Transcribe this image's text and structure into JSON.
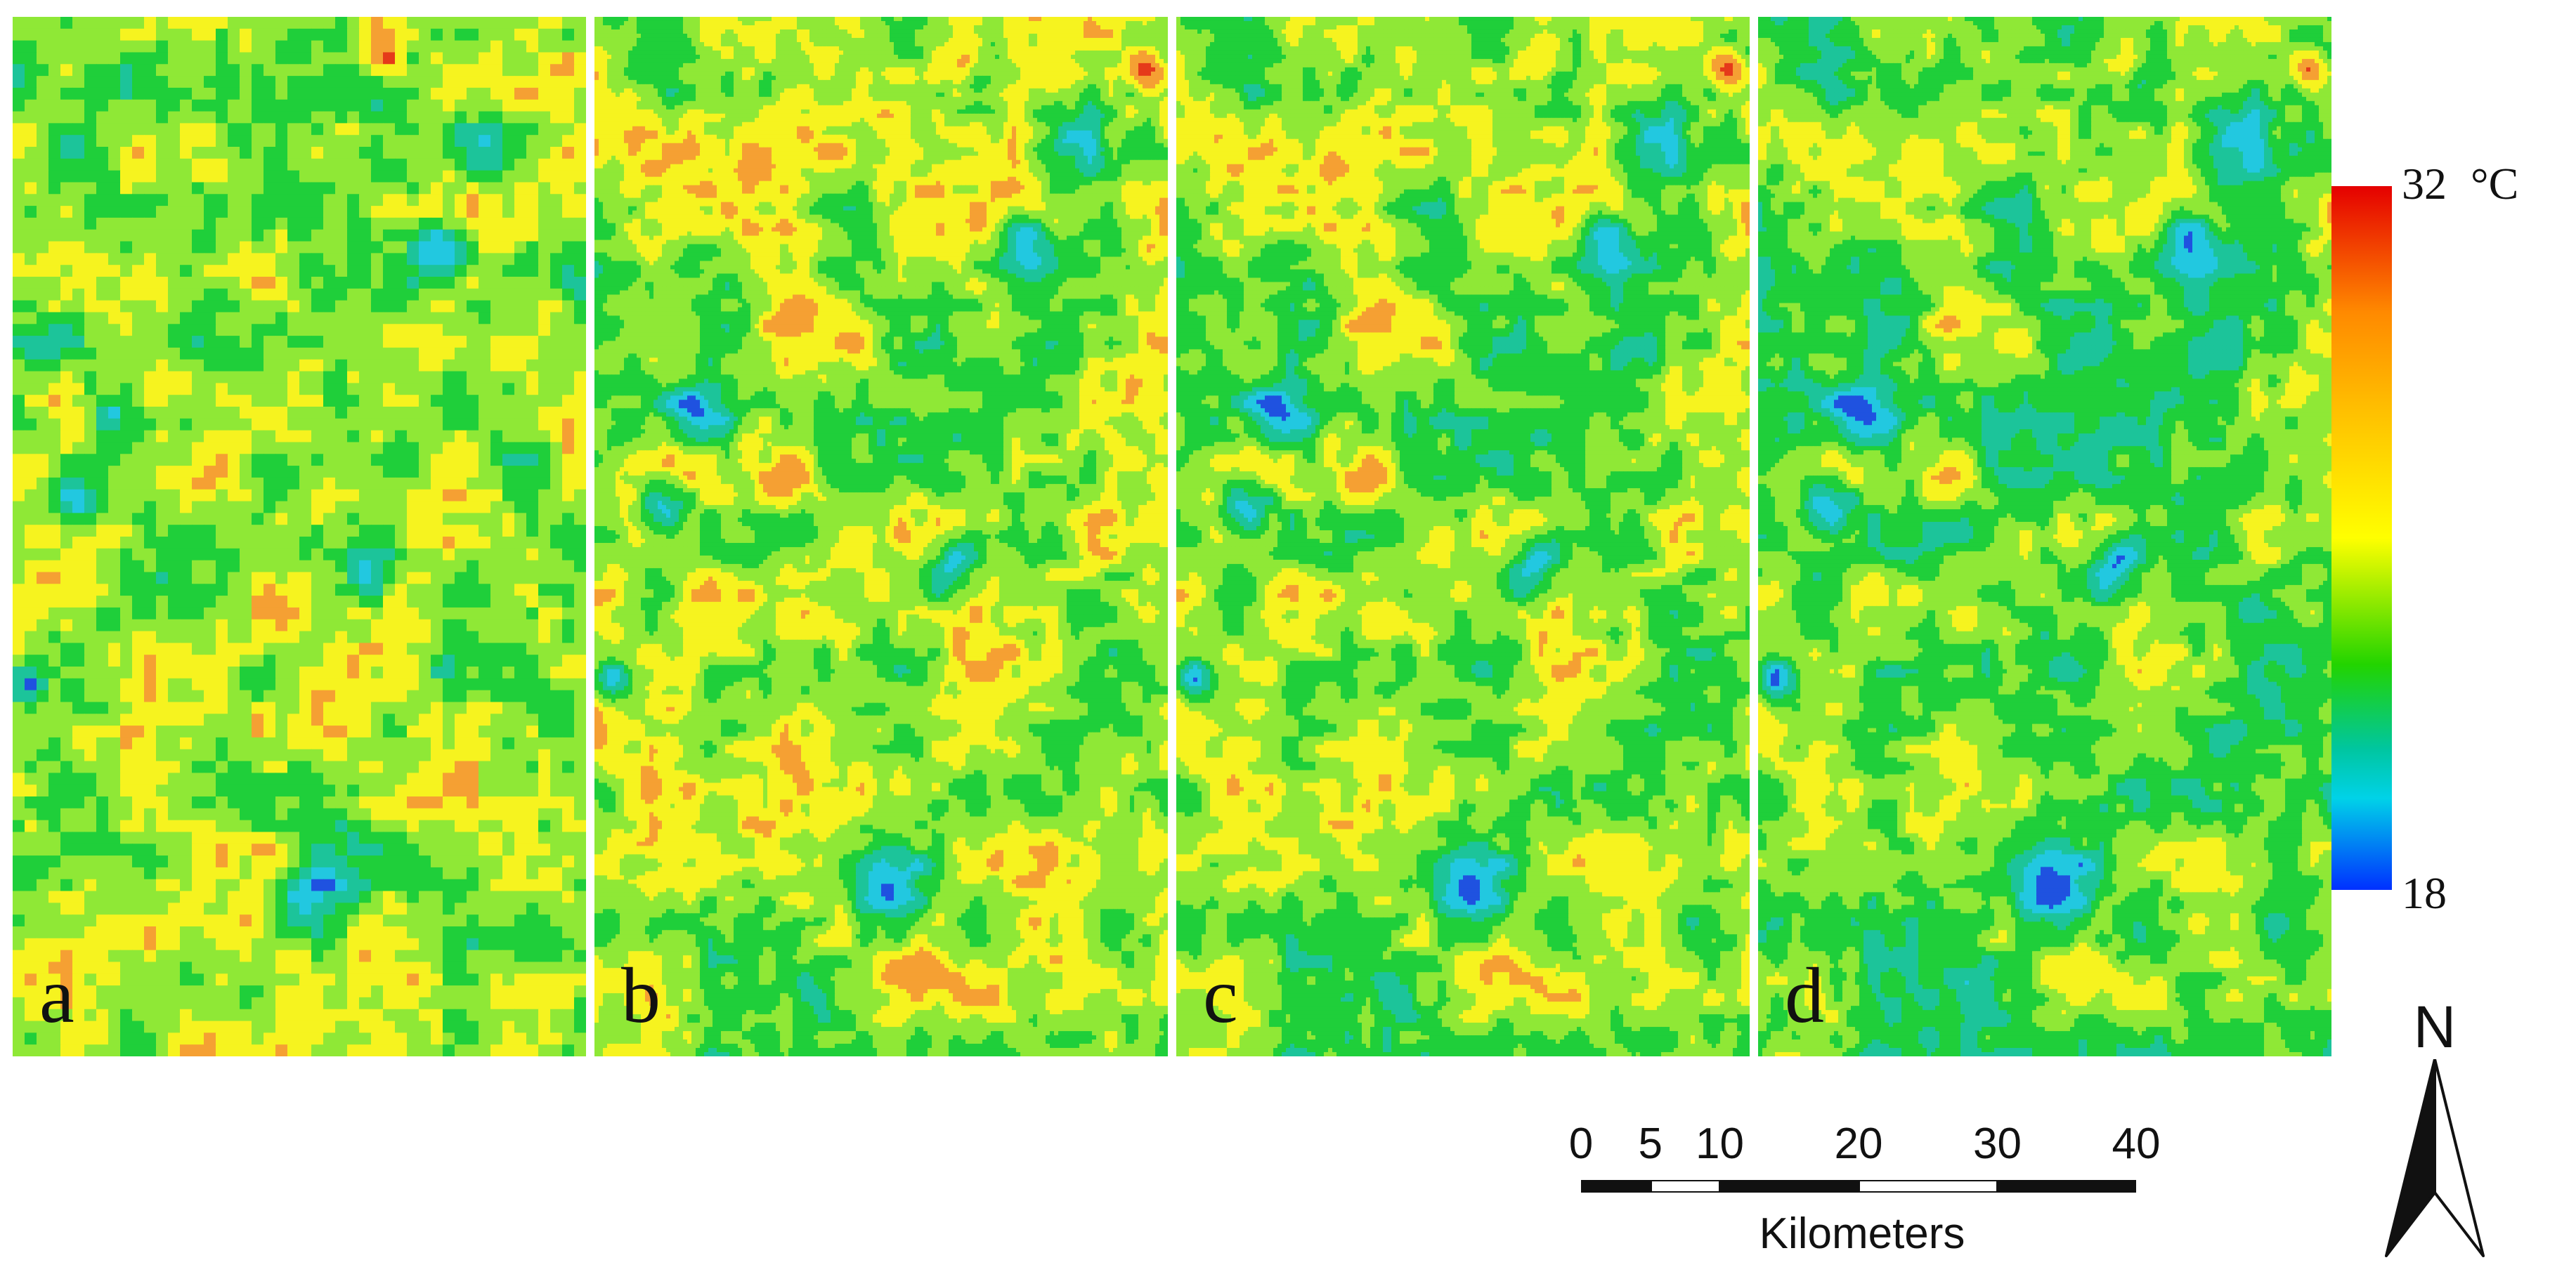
{
  "panels": [
    {
      "id": "a",
      "label": "a"
    },
    {
      "id": "b",
      "label": "b"
    },
    {
      "id": "c",
      "label": "c"
    },
    {
      "id": "d",
      "label": "d"
    }
  ],
  "legend": {
    "max_label": "32",
    "unit_label": "°C",
    "min_label": "18",
    "colors": [
      "#e50000",
      "#ff8a00",
      "#ffc000",
      "#ffff00",
      "#22d400",
      "#00c6a0",
      "#00d2e8",
      "#0030ff"
    ]
  },
  "scale_bar": {
    "ticks": [
      "0",
      "5",
      "10",
      "20",
      "30",
      "40"
    ],
    "tick_values": [
      0,
      5,
      10,
      20,
      30,
      40
    ],
    "unit": "Kilometers"
  },
  "north_arrow": {
    "letter": "N"
  },
  "colors": {
    "red": "#e53a1a",
    "orange": "#f5a033",
    "yellow": "#f6f31f",
    "light_green": "#8fe836",
    "green": "#1fcf3a",
    "teal": "#1cc49a",
    "cyan": "#22c8e0",
    "blue": "#1f52e0"
  }
}
